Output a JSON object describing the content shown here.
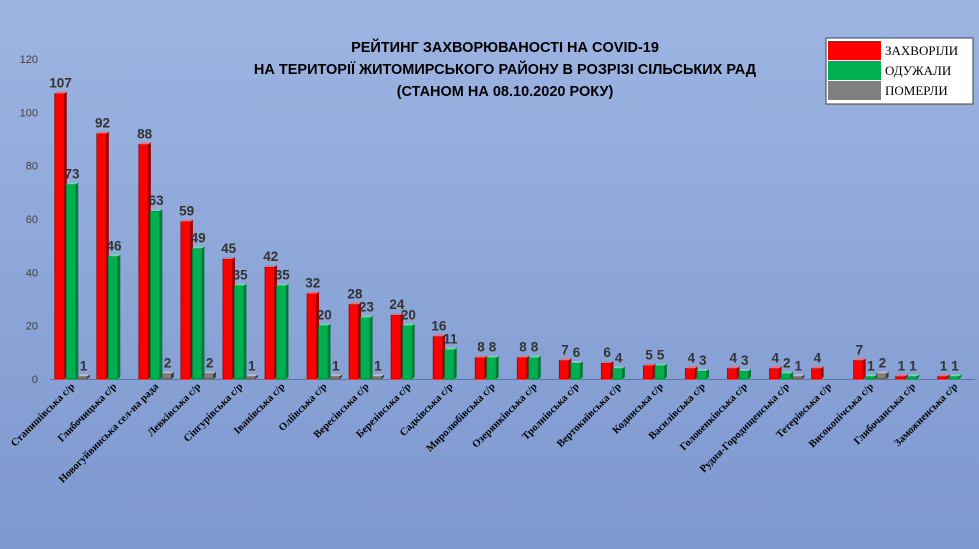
{
  "chart_data": {
    "type": "bar",
    "title_lines": [
      "РЕЙТИНГ ЗАХВОРЮВАНОСТІ НА COVID-19",
      "НА ТЕРИТОРІЇ ЖИТОМИРСЬКОГО РАЙОНУ В РОЗРІЗІ СІЛЬСЬКИХ РАД",
      "(СТАНОМ НА 08.10.2020 РОКУ)"
    ],
    "ylim": [
      0,
      120
    ],
    "yticks": [
      0,
      20,
      40,
      60,
      80,
      100,
      120
    ],
    "grid": false,
    "legend_position": "top-right",
    "categories": [
      "Станишівська с/р",
      "Глибочицька с/р",
      "Новогуйвинська сел-на рада",
      "Левківська с/р",
      "Сінгурівська с/р",
      "Іванівська с/р",
      "Оліївська с/р",
      "Вересівська с/р",
      "Березівська с/р",
      "Садківська с/р",
      "Миролюбівська с/р",
      "Озерянківська с/р",
      "Тролнівська с/р",
      "Вертокиївська с/р",
      "Кодинська с/р",
      "Василівська с/р",
      "Головенківська с/р",
      "Рудня-Городищенська с/р",
      "Тетерівська с/р",
      "Високопічська с/р",
      "Глибочанська с/р",
      "Заможненська с/р"
    ],
    "series": [
      {
        "name": "ЗАХВОРІЛИ",
        "color": "#ff0000",
        "values": [
          107,
          92,
          88,
          59,
          45,
          42,
          32,
          28,
          24,
          16,
          8,
          8,
          7,
          6,
          5,
          4,
          4,
          4,
          4,
          7,
          1,
          1
        ],
        "labels": [
          "107",
          "92",
          "88",
          "59",
          "45",
          "42",
          "32",
          "28",
          "24",
          "16",
          "8",
          "8",
          "7",
          "6",
          "5",
          "4",
          "4",
          "4",
          "4",
          "7",
          "1",
          "1"
        ]
      },
      {
        "name": "ОДУЖАЛИ",
        "color": "#00b050",
        "values": [
          73,
          46,
          63,
          49,
          35,
          35,
          20,
          23,
          20,
          11,
          8,
          8,
          6,
          4,
          5,
          3,
          3,
          2,
          0,
          1,
          1,
          1
        ],
        "labels": [
          "73",
          "46",
          "63",
          "49",
          "35",
          "35",
          "20",
          "23",
          "20",
          "11",
          "8",
          "8",
          "6",
          "4",
          "5",
          "3",
          "3",
          "2",
          "",
          "1",
          "1",
          "1"
        ]
      },
      {
        "name": "ПОМЕРЛИ",
        "color": "#7f7f7f",
        "values": [
          1,
          0,
          2,
          2,
          1,
          0,
          1,
          1,
          0,
          0,
          0,
          0,
          0,
          0,
          0,
          0,
          0,
          1,
          0,
          2,
          0,
          0
        ],
        "labels": [
          "1",
          "",
          "2",
          "2",
          "1",
          "",
          "1",
          "1",
          "",
          "",
          "",
          "",
          "",
          "",
          "",
          "",
          "",
          "1",
          "",
          "2",
          "",
          ""
        ]
      }
    ]
  }
}
